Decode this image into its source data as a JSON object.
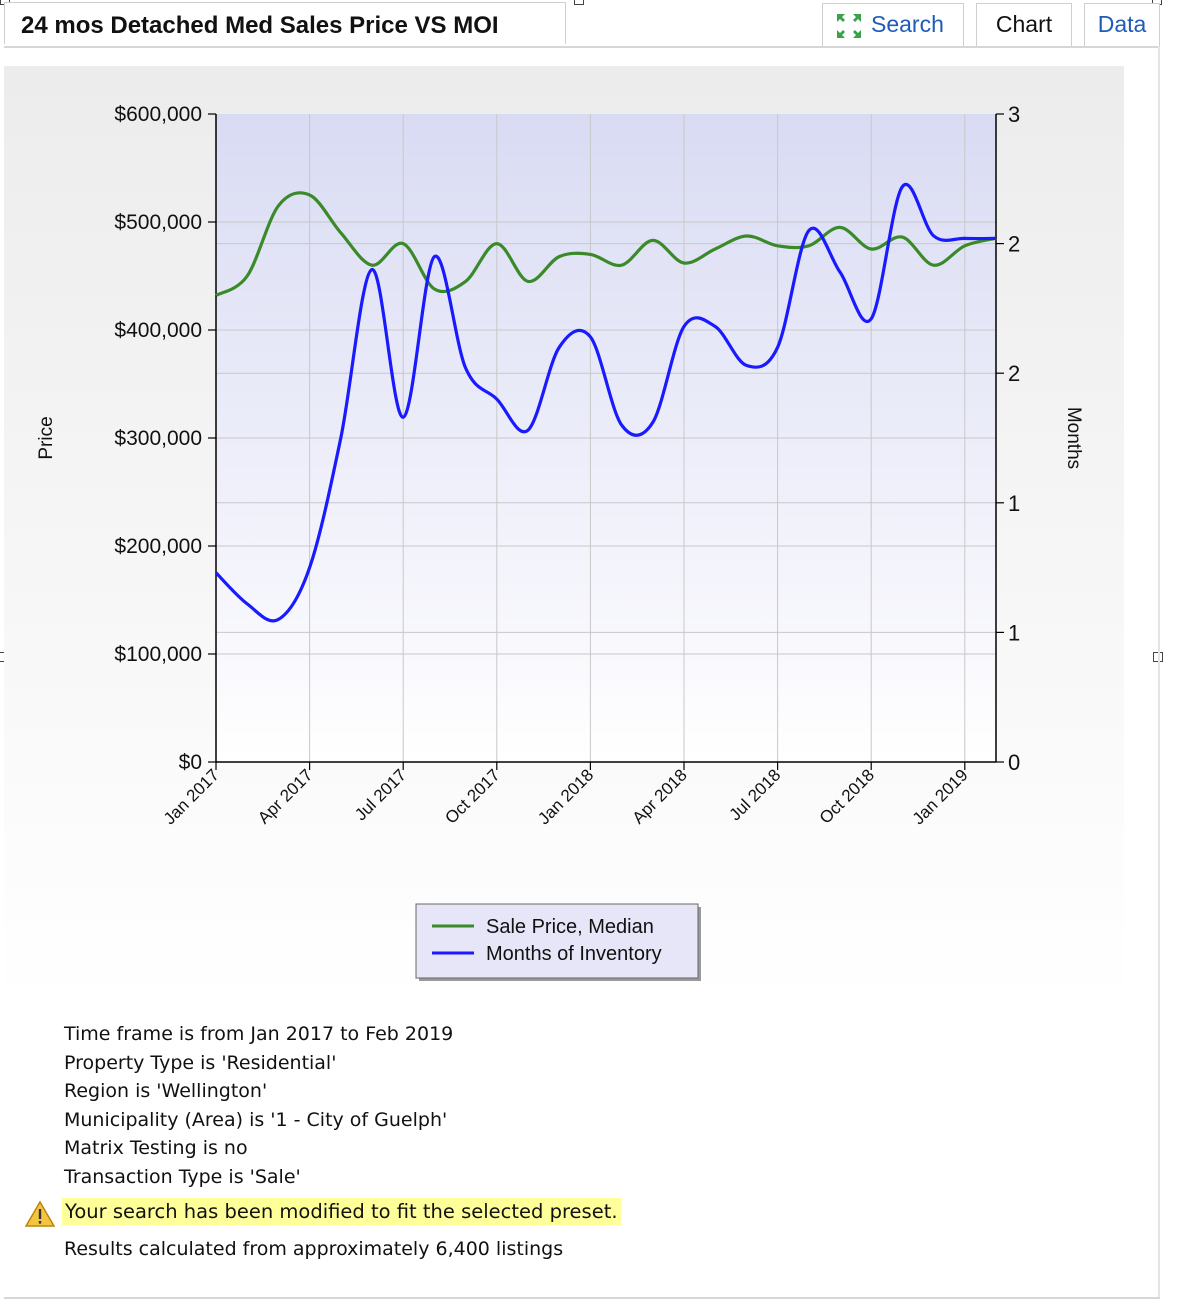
{
  "header": {
    "title": "24 mos Detached Med Sales Price VS MOI",
    "tabs": {
      "search": "Search",
      "chart": "Chart",
      "data": "Data"
    }
  },
  "chart_data": {
    "type": "line",
    "legend_position": "bottom-center",
    "grid": true,
    "x_tick_labels": [
      "Jan 2017",
      "Apr 2017",
      "Jul 2017",
      "Oct 2017",
      "Jan 2018",
      "Apr 2018",
      "Jul 2018",
      "Oct 2018",
      "Jan 2019"
    ],
    "x_range": [
      "2017-01",
      "2019-02"
    ],
    "ylabel": "Price",
    "ylabel_right": "Months",
    "y_ticks": [
      "$600,000",
      "$500,000",
      "$400,000",
      "$300,000",
      "$200,000",
      "$100,000",
      "$0"
    ],
    "y_ticks_right": [
      "3",
      "2",
      "2",
      "1",
      "1",
      "0"
    ],
    "ylim": [
      0,
      600000
    ],
    "ylim_right": [
      0,
      2.5
    ],
    "series": [
      {
        "name": "Sale Price, Median",
        "axis": "left",
        "color": "#3a8a2a",
        "x": [
          "2017-01",
          "2017-02",
          "2017-03",
          "2017-04",
          "2017-05",
          "2017-06",
          "2017-07",
          "2017-08",
          "2017-09",
          "2017-10",
          "2017-11",
          "2017-12",
          "2018-01",
          "2018-02",
          "2018-03",
          "2018-04",
          "2018-05",
          "2018-06",
          "2018-07",
          "2018-08",
          "2018-09",
          "2018-10",
          "2018-11",
          "2018-12",
          "2019-01",
          "2019-02"
        ],
        "values": [
          432000,
          450000,
          515000,
          525000,
          490000,
          460000,
          480000,
          438000,
          445000,
          480000,
          445000,
          468000,
          470000,
          460000,
          483000,
          462000,
          475000,
          487000,
          478000,
          478000,
          495000,
          475000,
          486000,
          460000,
          478000,
          485000
        ]
      },
      {
        "name": "Months of Inventory",
        "axis": "right",
        "color": "#1a1aff",
        "x": [
          "2017-01",
          "2017-02",
          "2017-03",
          "2017-04",
          "2017-05",
          "2017-06",
          "2017-07",
          "2017-08",
          "2017-09",
          "2017-10",
          "2017-11",
          "2017-12",
          "2018-01",
          "2018-02",
          "2018-03",
          "2018-04",
          "2018-05",
          "2018-06",
          "2018-07",
          "2018-08",
          "2018-09",
          "2018-10",
          "2018-11",
          "2018-12",
          "2019-01",
          "2019-02"
        ],
        "values": [
          0.73,
          0.61,
          0.55,
          0.75,
          1.25,
          1.9,
          1.33,
          1.95,
          1.52,
          1.4,
          1.28,
          1.6,
          1.64,
          1.3,
          1.31,
          1.68,
          1.68,
          1.53,
          1.6,
          2.05,
          1.89,
          1.71,
          2.22,
          2.03,
          2.02,
          2.02
        ]
      }
    ]
  },
  "info": {
    "lines": [
      "Time frame is from Jan 2017 to Feb 2019",
      "Property Type is 'Residential'",
      "Region is 'Wellington'",
      "Municipality (Area) is '1 - City of Guelph'",
      "Matrix Testing is no",
      "Transaction Type is 'Sale'"
    ],
    "warning": "Your search has been modified to fit the selected preset.",
    "results": "Results calculated from approximately 6,400 listings"
  }
}
